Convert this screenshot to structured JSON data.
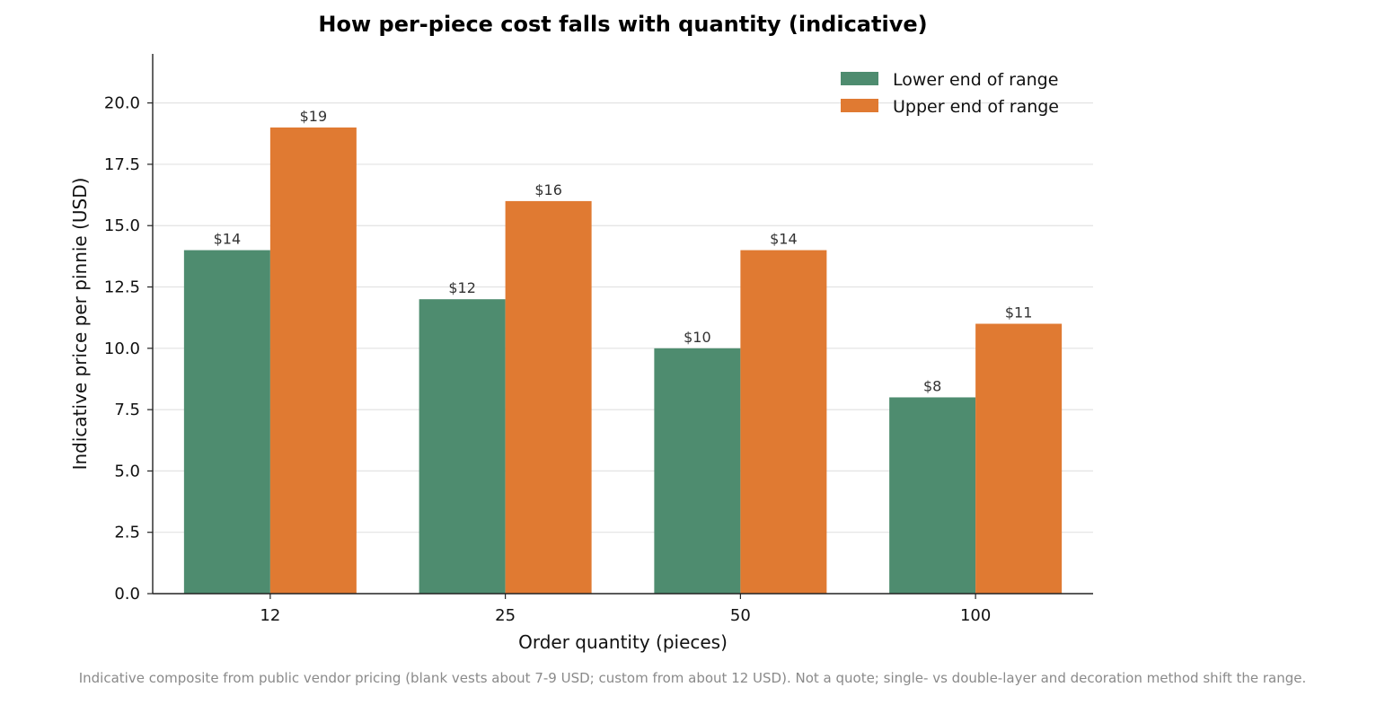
{
  "chart_data": {
    "type": "bar",
    "title": "How per-piece cost falls with quantity (indicative)",
    "xlabel": "Order quantity (pieces)",
    "ylabel": "Indicative price per pinnie (USD)",
    "categories": [
      "12",
      "25",
      "50",
      "100"
    ],
    "series": [
      {
        "name": "Lower end of range",
        "values": [
          14,
          12,
          10,
          8
        ],
        "labels": [
          "$14",
          "$12",
          "$10",
          "$8"
        ],
        "color": "#4e8c6f"
      },
      {
        "name": "Upper end of range",
        "values": [
          19,
          16,
          14,
          11
        ],
        "labels": [
          "$19",
          "$16",
          "$14",
          "$11"
        ],
        "color": "#e07a32"
      }
    ],
    "ylim": [
      0,
      22
    ],
    "yticks": [
      "0.0",
      "2.5",
      "5.0",
      "7.5",
      "10.0",
      "12.5",
      "15.0",
      "17.5",
      "20.0"
    ],
    "grid": "horizontal",
    "legend_position": "top-right"
  },
  "footnote": "Indicative composite from public vendor pricing (blank vests about 7-9 USD; custom from about 12 USD). Not a quote; single- vs double-layer and decoration method shift the range."
}
